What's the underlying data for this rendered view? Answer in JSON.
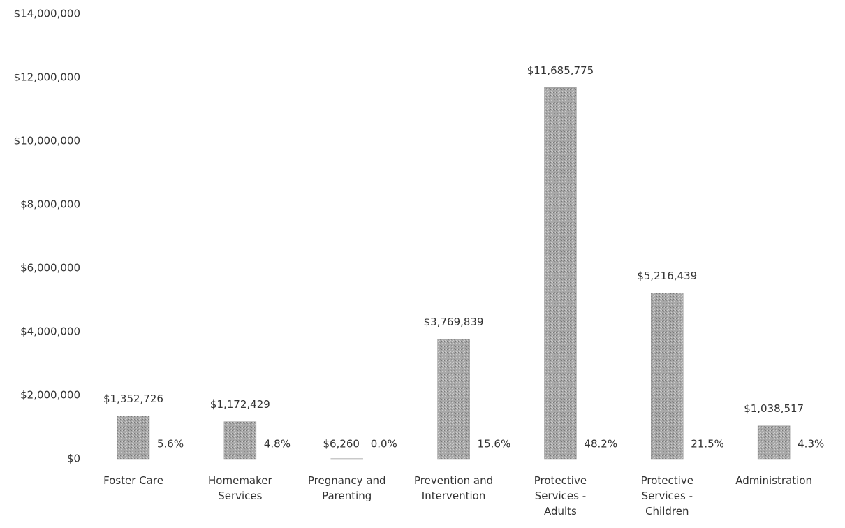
{
  "chart_data": {
    "type": "bar",
    "categories": [
      "Foster Care",
      "Homemaker Services",
      "Pregnancy and Parenting",
      "Prevention and Intervention",
      "Protective Services - Adults",
      "Protective Services - Children",
      "Administration"
    ],
    "values": [
      1352726,
      1172429,
      6260,
      3769839,
      11685775,
      5216439,
      1038517
    ],
    "value_labels": [
      "$1,352,726",
      "$1,172,429",
      "$6,260",
      "$3,769,839",
      "$11,685,775",
      "$5,216,439",
      "$1,038,517"
    ],
    "share_labels": [
      "5.6%",
      "4.8%",
      "0.0%",
      "15.6%",
      "48.2%",
      "21.5%",
      "4.3%"
    ],
    "color": "#9a9a9a",
    "ylim": [
      0,
      14000000
    ],
    "yticks": [
      {
        "value": 0,
        "label": "$0"
      },
      {
        "value": 2000000,
        "label": "$2,000,000"
      },
      {
        "value": 4000000,
        "label": "$4,000,000"
      },
      {
        "value": 6000000,
        "label": "$6,000,000"
      },
      {
        "value": 8000000,
        "label": "$8,000,000"
      },
      {
        "value": 10000000,
        "label": "$10,000,000"
      },
      {
        "value": 12000000,
        "label": "$12,000,000"
      },
      {
        "value": 14000000,
        "label": "$14,000,000"
      }
    ],
    "grid": false
  }
}
